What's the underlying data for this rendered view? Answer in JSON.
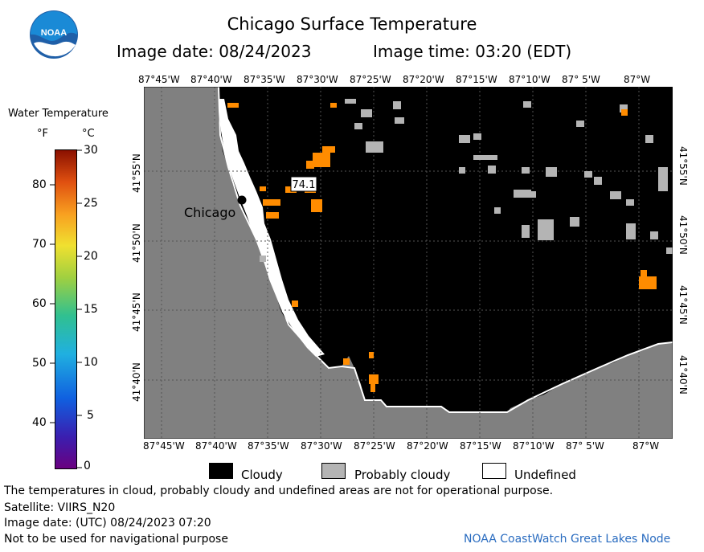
{
  "header": {
    "title": "Chicago Surface Temperature",
    "image_date": "Image date: 08/24/2023",
    "image_time": "Image time: 03:20 (EDT)"
  },
  "logo": {
    "text": "NOAA"
  },
  "colorbar": {
    "title": "Water Temperature",
    "unit_f": "°F",
    "unit_c": "°C",
    "f_ticks": [
      "80",
      "70",
      "60",
      "50",
      "40"
    ],
    "c_ticks": [
      "30",
      "25",
      "20",
      "15",
      "10",
      "5",
      "0"
    ]
  },
  "map": {
    "lon_ticks": [
      "87°45'W",
      "87°40'W",
      "87°35'W",
      "87°30'W",
      "87°25'W",
      "87°20'W",
      "87°15'W",
      "87°10'W",
      "87° 5'W",
      "87°W"
    ],
    "lat_ticks": [
      "41°55'N",
      "41°50'N",
      "41°45'N",
      "41°40'N"
    ],
    "city_label": "Chicago",
    "temp_label": "74.1",
    "colors": {
      "land": "#808080",
      "cloud": "#000000",
      "prob_cloud": "#b4b4b4",
      "undefined": "#ffffff",
      "warm": "#ff8c00"
    }
  },
  "legend": {
    "cloudy": "Cloudy",
    "prob_cloudy": "Probably cloudy",
    "undefined": "Undefined"
  },
  "footer": {
    "note": "The temperatures in cloud, probably cloudy and undefined areas are not for operational purpose.",
    "satellite": "Satellite: VIIRS_N20",
    "utc_date": "Image date: (UTC) 08/24/2023  07:20",
    "nav": "Not to be used for navigational purpose",
    "credit": "NOAA CoastWatch Great Lakes Node"
  }
}
